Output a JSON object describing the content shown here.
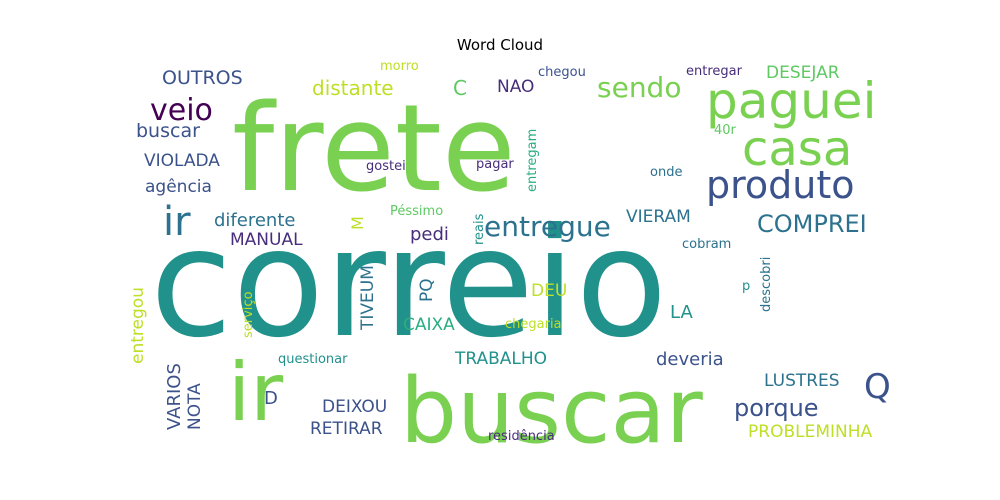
{
  "chart_data": {
    "type": "wordcloud",
    "title": "Word Cloud",
    "words": [
      {
        "text": "correio",
        "color": "#21918c"
      },
      {
        "text": "frete",
        "color": "#7ad151"
      },
      {
        "text": "buscar",
        "color": "#7ad151"
      },
      {
        "text": "ir",
        "color": "#7ad151"
      },
      {
        "text": "paguei",
        "color": "#7ad151"
      },
      {
        "text": "casa",
        "color": "#7ad151"
      },
      {
        "text": "produto",
        "color": "#3b528b"
      },
      {
        "text": "ir",
        "color": "#2c728e"
      },
      {
        "text": "veio",
        "color": "#440154"
      },
      {
        "text": "sendo",
        "color": "#7ad151"
      },
      {
        "text": "entregue",
        "color": "#2c728e"
      },
      {
        "text": "COMPREI",
        "color": "#2c728e"
      },
      {
        "text": "Q",
        "color": "#3b528b"
      },
      {
        "text": "porque",
        "color": "#3b528b"
      },
      {
        "text": "distante",
        "color": "#bddf26"
      },
      {
        "text": "OUTROS",
        "color": "#3b528b"
      },
      {
        "text": "buscar",
        "color": "#3b528b"
      },
      {
        "text": "VIOLADA",
        "color": "#3b528b"
      },
      {
        "text": "agência",
        "color": "#3b528b"
      },
      {
        "text": "diferente",
        "color": "#2c728e"
      },
      {
        "text": "MANUAL",
        "color": "#472d7b"
      },
      {
        "text": "DESEJAR",
        "color": "#5ec962"
      },
      {
        "text": "C",
        "color": "#5ec962"
      },
      {
        "text": "NAO",
        "color": "#472d7b"
      },
      {
        "text": "morro",
        "color": "#bddf26"
      },
      {
        "text": "chegou",
        "color": "#3b528b"
      },
      {
        "text": "entregar",
        "color": "#472d7b"
      },
      {
        "text": "40r",
        "color": "#5ec962"
      },
      {
        "text": "gostei",
        "color": "#472d7b"
      },
      {
        "text": "pagar",
        "color": "#472d7b"
      },
      {
        "text": "entregam",
        "color": "#28ae80"
      },
      {
        "text": "onde",
        "color": "#2c728e"
      },
      {
        "text": "Péssimo",
        "color": "#5ec962"
      },
      {
        "text": "reais",
        "color": "#21918c"
      },
      {
        "text": "pedi",
        "color": "#472d7b"
      },
      {
        "text": "VIERAM",
        "color": "#2c728e"
      },
      {
        "text": "M",
        "color": "#bddf26"
      },
      {
        "text": "cobram",
        "color": "#2c728e"
      },
      {
        "text": "descobri",
        "color": "#2c728e"
      },
      {
        "text": "p",
        "color": "#21918c"
      },
      {
        "text": "entregou",
        "color": "#bddf26"
      },
      {
        "text": "serviço",
        "color": "#bddf26"
      },
      {
        "text": "TIVEUM",
        "color": "#2c728e"
      },
      {
        "text": "PQ",
        "color": "#2c728e"
      },
      {
        "text": "DEU",
        "color": "#bddf26"
      },
      {
        "text": "LA",
        "color": "#21918c"
      },
      {
        "text": "CAIXA",
        "color": "#28ae80"
      },
      {
        "text": "chegaria",
        "color": "#bddf26"
      },
      {
        "text": "TRABALHO",
        "color": "#21918c"
      },
      {
        "text": "deveria",
        "color": "#3b528b"
      },
      {
        "text": "questionar",
        "color": "#21918c"
      },
      {
        "text": "LUSTRES",
        "color": "#2c728e"
      },
      {
        "text": "VARIOS",
        "color": "#3b528b"
      },
      {
        "text": "NOTA",
        "color": "#3b528b"
      },
      {
        "text": "D",
        "color": "#3b528b"
      },
      {
        "text": "DEIXOU",
        "color": "#3b528b"
      },
      {
        "text": "RETIRAR",
        "color": "#3b528b"
      },
      {
        "text": "residência",
        "color": "#472d7b"
      },
      {
        "text": "PROBLEMINHA",
        "color": "#bddf26"
      }
    ]
  }
}
